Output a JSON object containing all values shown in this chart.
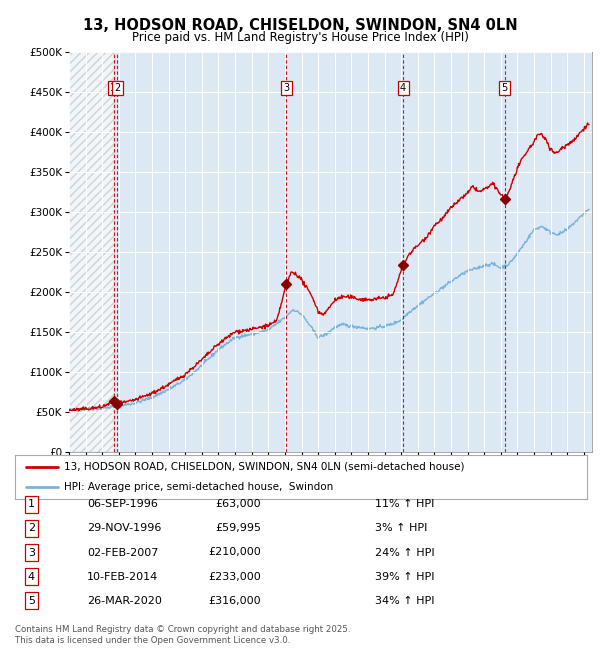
{
  "title_line1": "13, HODSON ROAD, CHISELDON, SWINDON, SN4 0LN",
  "title_line2": "Price paid vs. HM Land Registry's House Price Index (HPI)",
  "xlim_start": 1994.0,
  "xlim_end": 2025.5,
  "ylim_min": 0,
  "ylim_max": 500000,
  "ytick_values": [
    0,
    50000,
    100000,
    150000,
    200000,
    250000,
    300000,
    350000,
    400000,
    450000,
    500000
  ],
  "ytick_labels": [
    "£0",
    "£50K",
    "£100K",
    "£150K",
    "£200K",
    "£250K",
    "£300K",
    "£350K",
    "£400K",
    "£450K",
    "£500K"
  ],
  "plot_bg_color": "#dce9f5",
  "hpi_line_color": "#7ab3d9",
  "price_line_color": "#cc0000",
  "sale_marker_color": "#880000",
  "sale_vline_color": "#cc0000",
  "legend_label_price": "13, HODSON ROAD, CHISELDON, SWINDON, SN4 0LN (semi-detached house)",
  "legend_label_hpi": "HPI: Average price, semi-detached house,  Swindon",
  "hatch_color": "#bbbbbb",
  "sales": [
    {
      "num": 1,
      "date_label": "06-SEP-1996",
      "price": 63000,
      "hpi_pct": "11% ↑ HPI",
      "year": 1996.68
    },
    {
      "num": 2,
      "date_label": "29-NOV-1996",
      "price": 59995,
      "hpi_pct": "3% ↑ HPI",
      "year": 1996.91
    },
    {
      "num": 3,
      "date_label": "02-FEB-2007",
      "price": 210000,
      "hpi_pct": "24% ↑ HPI",
      "year": 2007.09
    },
    {
      "num": 4,
      "date_label": "10-FEB-2014",
      "price": 233000,
      "hpi_pct": "39% ↑ HPI",
      "year": 2014.11
    },
    {
      "num": 5,
      "date_label": "26-MAR-2020",
      "price": 316000,
      "hpi_pct": "34% ↑ HPI",
      "year": 2020.23
    }
  ],
  "footer_line1": "Contains HM Land Registry data © Crown copyright and database right 2025.",
  "footer_line2": "This data is licensed under the Open Government Licence v3.0.",
  "table_rows": [
    [
      "1",
      "06-SEP-1996",
      "£63,000",
      "11% ↑ HPI"
    ],
    [
      "2",
      "29-NOV-1996",
      "£59,995",
      "3% ↑ HPI"
    ],
    [
      "3",
      "02-FEB-2007",
      "£210,000",
      "24% ↑ HPI"
    ],
    [
      "4",
      "10-FEB-2014",
      "£233,000",
      "39% ↑ HPI"
    ],
    [
      "5",
      "26-MAR-2020",
      "£316,000",
      "34% ↑ HPI"
    ]
  ],
  "hpi_key_points": [
    [
      1994.0,
      52000
    ],
    [
      1995.0,
      53500
    ],
    [
      1996.0,
      54500
    ],
    [
      1997.0,
      57000
    ],
    [
      1998.0,
      61000
    ],
    [
      1999.0,
      68000
    ],
    [
      2000.0,
      78000
    ],
    [
      2001.0,
      90000
    ],
    [
      2002.0,
      108000
    ],
    [
      2003.0,
      128000
    ],
    [
      2004.0,
      143000
    ],
    [
      2005.0,
      147000
    ],
    [
      2006.0,
      152000
    ],
    [
      2007.0,
      168000
    ],
    [
      2007.5,
      178000
    ],
    [
      2008.0,
      172000
    ],
    [
      2008.5,
      158000
    ],
    [
      2009.0,
      143000
    ],
    [
      2009.5,
      147000
    ],
    [
      2010.0,
      156000
    ],
    [
      2010.5,
      159000
    ],
    [
      2011.0,
      157000
    ],
    [
      2011.5,
      156000
    ],
    [
      2012.0,
      154000
    ],
    [
      2012.5,
      155000
    ],
    [
      2013.0,
      157000
    ],
    [
      2013.5,
      160000
    ],
    [
      2014.0,
      165000
    ],
    [
      2014.5,
      175000
    ],
    [
      2015.0,
      183000
    ],
    [
      2016.0,
      198000
    ],
    [
      2017.0,
      213000
    ],
    [
      2017.5,
      220000
    ],
    [
      2018.0,
      226000
    ],
    [
      2018.5,
      229000
    ],
    [
      2019.0,
      233000
    ],
    [
      2019.5,
      235000
    ],
    [
      2020.0,
      230000
    ],
    [
      2020.5,
      235000
    ],
    [
      2021.0,
      248000
    ],
    [
      2021.5,
      263000
    ],
    [
      2022.0,
      278000
    ],
    [
      2022.5,
      282000
    ],
    [
      2023.0,
      274000
    ],
    [
      2023.5,
      272000
    ],
    [
      2024.0,
      278000
    ],
    [
      2024.5,
      288000
    ],
    [
      2025.0,
      298000
    ],
    [
      2025.3,
      303000
    ]
  ],
  "price_key_points": [
    [
      1994.0,
      52000
    ],
    [
      1995.0,
      53500
    ],
    [
      1996.0,
      56000
    ],
    [
      1996.68,
      63000
    ],
    [
      1996.91,
      59995
    ],
    [
      1997.0,
      60500
    ],
    [
      1997.5,
      62000
    ],
    [
      1998.0,
      65000
    ],
    [
      1999.0,
      73000
    ],
    [
      2000.0,
      84000
    ],
    [
      2001.0,
      97000
    ],
    [
      2002.0,
      115000
    ],
    [
      2003.0,
      135000
    ],
    [
      2004.0,
      150000
    ],
    [
      2005.0,
      153000
    ],
    [
      2006.0,
      158000
    ],
    [
      2006.5,
      163000
    ],
    [
      2007.09,
      210000
    ],
    [
      2007.4,
      225000
    ],
    [
      2007.7,
      222000
    ],
    [
      2008.0,
      215000
    ],
    [
      2008.3,
      205000
    ],
    [
      2008.7,
      192000
    ],
    [
      2009.0,
      175000
    ],
    [
      2009.3,
      172000
    ],
    [
      2009.6,
      178000
    ],
    [
      2010.0,
      190000
    ],
    [
      2010.5,
      194000
    ],
    [
      2011.0,
      193000
    ],
    [
      2011.5,
      191000
    ],
    [
      2012.0,
      190000
    ],
    [
      2012.5,
      191000
    ],
    [
      2013.0,
      193000
    ],
    [
      2013.5,
      196000
    ],
    [
      2014.11,
      233000
    ],
    [
      2014.5,
      248000
    ],
    [
      2015.0,
      258000
    ],
    [
      2015.5,
      268000
    ],
    [
      2016.0,
      283000
    ],
    [
      2016.5,
      292000
    ],
    [
      2017.0,
      305000
    ],
    [
      2017.5,
      315000
    ],
    [
      2018.0,
      323000
    ],
    [
      2018.3,
      332000
    ],
    [
      2018.7,
      325000
    ],
    [
      2019.0,
      328000
    ],
    [
      2019.5,
      335000
    ],
    [
      2020.0,
      322000
    ],
    [
      2020.23,
      316000
    ],
    [
      2020.5,
      326000
    ],
    [
      2021.0,
      355000
    ],
    [
      2021.5,
      373000
    ],
    [
      2022.0,
      388000
    ],
    [
      2022.3,
      398000
    ],
    [
      2022.7,
      392000
    ],
    [
      2023.0,
      378000
    ],
    [
      2023.3,
      373000
    ],
    [
      2023.7,
      380000
    ],
    [
      2024.0,
      384000
    ],
    [
      2024.5,
      392000
    ],
    [
      2025.0,
      405000
    ],
    [
      2025.3,
      410000
    ]
  ]
}
